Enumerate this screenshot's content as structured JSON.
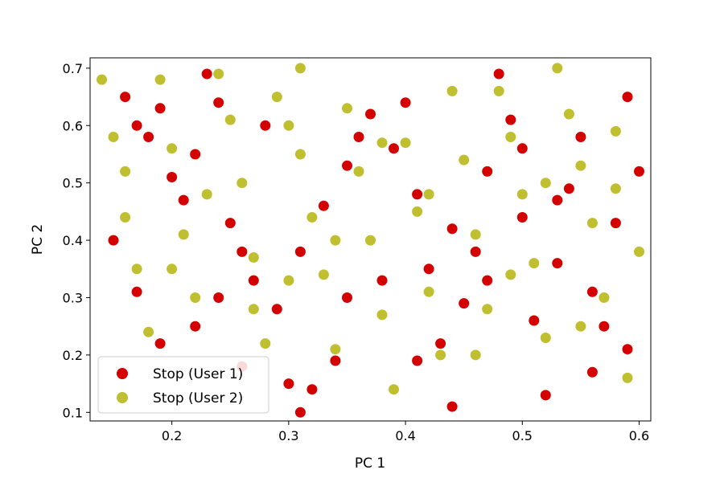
{
  "chart_data": {
    "type": "scatter",
    "title": "",
    "xlabel": "PC 1",
    "ylabel": "PC 2",
    "xlim": [
      0.13,
      0.61
    ],
    "ylim": [
      0.085,
      0.718
    ],
    "xticks": [
      "0.2",
      "0.3",
      "0.4",
      "0.5",
      "0.6"
    ],
    "yticks": [
      "0.1",
      "0.2",
      "0.3",
      "0.4",
      "0.5",
      "0.6",
      "0.7"
    ],
    "grid": false,
    "legend_position": "lower-left",
    "series": [
      {
        "name": "Stop (User 1)",
        "color": "#d40000",
        "points": [
          [
            0.15,
            0.4
          ],
          [
            0.16,
            0.65
          ],
          [
            0.17,
            0.6
          ],
          [
            0.18,
            0.58
          ],
          [
            0.19,
            0.63
          ],
          [
            0.2,
            0.51
          ],
          [
            0.21,
            0.47
          ],
          [
            0.22,
            0.55
          ],
          [
            0.23,
            0.69
          ],
          [
            0.24,
            0.64
          ],
          [
            0.25,
            0.43
          ],
          [
            0.26,
            0.38
          ],
          [
            0.27,
            0.33
          ],
          [
            0.29,
            0.28
          ],
          [
            0.3,
            0.15
          ],
          [
            0.31,
            0.1
          ],
          [
            0.32,
            0.14
          ],
          [
            0.34,
            0.19
          ],
          [
            0.35,
            0.3
          ],
          [
            0.36,
            0.58
          ],
          [
            0.37,
            0.62
          ],
          [
            0.39,
            0.56
          ],
          [
            0.4,
            0.64
          ],
          [
            0.41,
            0.48
          ],
          [
            0.42,
            0.35
          ],
          [
            0.43,
            0.22
          ],
          [
            0.44,
            0.11
          ],
          [
            0.45,
            0.29
          ],
          [
            0.46,
            0.38
          ],
          [
            0.47,
            0.52
          ],
          [
            0.48,
            0.69
          ],
          [
            0.49,
            0.61
          ],
          [
            0.5,
            0.44
          ],
          [
            0.51,
            0.26
          ],
          [
            0.52,
            0.13
          ],
          [
            0.53,
            0.36
          ],
          [
            0.54,
            0.49
          ],
          [
            0.55,
            0.58
          ],
          [
            0.56,
            0.17
          ],
          [
            0.57,
            0.25
          ],
          [
            0.58,
            0.43
          ],
          [
            0.59,
            0.65
          ],
          [
            0.6,
            0.52
          ],
          [
            0.22,
            0.25
          ],
          [
            0.24,
            0.3
          ],
          [
            0.26,
            0.18
          ],
          [
            0.28,
            0.6
          ],
          [
            0.31,
            0.38
          ],
          [
            0.33,
            0.46
          ],
          [
            0.35,
            0.53
          ],
          [
            0.38,
            0.33
          ],
          [
            0.41,
            0.19
          ],
          [
            0.44,
            0.42
          ],
          [
            0.47,
            0.33
          ],
          [
            0.5,
            0.56
          ],
          [
            0.53,
            0.47
          ],
          [
            0.56,
            0.31
          ],
          [
            0.59,
            0.21
          ],
          [
            0.17,
            0.31
          ],
          [
            0.19,
            0.22
          ]
        ]
      },
      {
        "name": "Stop (User 2)",
        "color": "#bfbf30",
        "points": [
          [
            0.14,
            0.68
          ],
          [
            0.15,
            0.58
          ],
          [
            0.16,
            0.44
          ],
          [
            0.17,
            0.35
          ],
          [
            0.18,
            0.24
          ],
          [
            0.19,
            0.68
          ],
          [
            0.2,
            0.56
          ],
          [
            0.21,
            0.41
          ],
          [
            0.22,
            0.3
          ],
          [
            0.24,
            0.69
          ],
          [
            0.25,
            0.61
          ],
          [
            0.26,
            0.5
          ],
          [
            0.27,
            0.37
          ],
          [
            0.28,
            0.22
          ],
          [
            0.29,
            0.65
          ],
          [
            0.3,
            0.6
          ],
          [
            0.31,
            0.7
          ],
          [
            0.32,
            0.44
          ],
          [
            0.33,
            0.34
          ],
          [
            0.34,
            0.21
          ],
          [
            0.35,
            0.63
          ],
          [
            0.36,
            0.52
          ],
          [
            0.37,
            0.4
          ],
          [
            0.38,
            0.27
          ],
          [
            0.39,
            0.14
          ],
          [
            0.4,
            0.57
          ],
          [
            0.41,
            0.45
          ],
          [
            0.42,
            0.31
          ],
          [
            0.43,
            0.2
          ],
          [
            0.44,
            0.66
          ],
          [
            0.45,
            0.54
          ],
          [
            0.46,
            0.41
          ],
          [
            0.47,
            0.28
          ],
          [
            0.48,
            0.66
          ],
          [
            0.49,
            0.58
          ],
          [
            0.5,
            0.48
          ],
          [
            0.51,
            0.36
          ],
          [
            0.52,
            0.23
          ],
          [
            0.53,
            0.7
          ],
          [
            0.54,
            0.62
          ],
          [
            0.55,
            0.53
          ],
          [
            0.56,
            0.43
          ],
          [
            0.57,
            0.3
          ],
          [
            0.58,
            0.59
          ],
          [
            0.59,
            0.16
          ],
          [
            0.6,
            0.38
          ],
          [
            0.23,
            0.48
          ],
          [
            0.27,
            0.28
          ],
          [
            0.31,
            0.55
          ],
          [
            0.34,
            0.4
          ],
          [
            0.38,
            0.57
          ],
          [
            0.42,
            0.48
          ],
          [
            0.46,
            0.2
          ],
          [
            0.49,
            0.34
          ],
          [
            0.52,
            0.5
          ],
          [
            0.55,
            0.25
          ],
          [
            0.58,
            0.49
          ],
          [
            0.16,
            0.52
          ],
          [
            0.2,
            0.35
          ],
          [
            0.3,
            0.33
          ]
        ]
      }
    ]
  }
}
